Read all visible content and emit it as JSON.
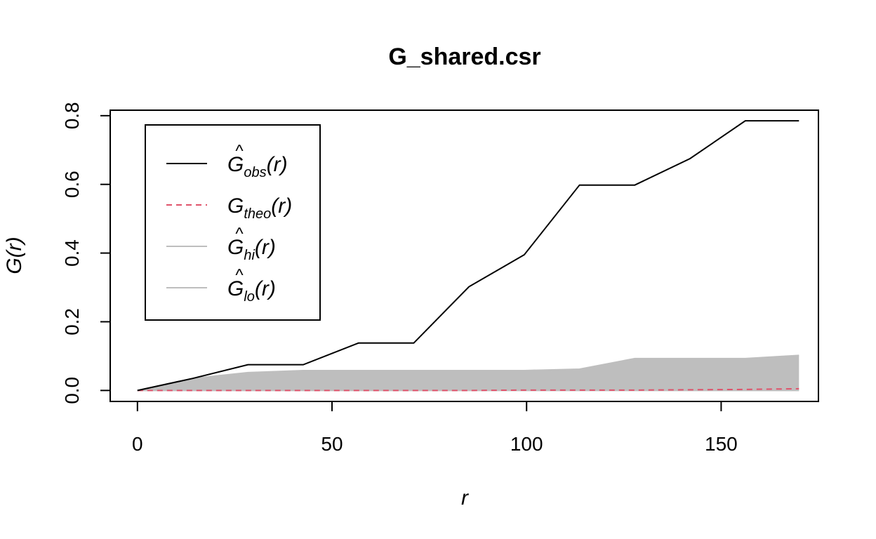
{
  "chart_data": {
    "type": "line",
    "title": "G_shared.csr",
    "xlabel": "r",
    "ylabel": "G(r)",
    "xlim": [
      -7,
      175
    ],
    "ylim": [
      -0.032,
      0.816
    ],
    "xticks": [
      0,
      50,
      100,
      150
    ],
    "yticks": [
      0.0,
      0.2,
      0.4,
      0.6,
      0.8
    ],
    "ytick_labels": [
      "0.0",
      "0.2",
      "0.4",
      "0.6",
      "0.8"
    ],
    "xtick_labels": [
      "0",
      "50",
      "100",
      "150"
    ],
    "legend_position": "top-left",
    "series": [
      {
        "name": "obs",
        "style": "solid",
        "color": "#000000",
        "x": [
          0,
          14.2,
          28.4,
          42.6,
          56.8,
          71,
          85.2,
          99.4,
          113.6,
          127.8,
          142,
          156.2,
          170
        ],
        "y": [
          0,
          0.035,
          0.075,
          0.075,
          0.138,
          0.138,
          0.302,
          0.395,
          0.598,
          0.598,
          0.675,
          0.785,
          0.785
        ]
      },
      {
        "name": "theo",
        "style": "dashed",
        "color": "#DF536B",
        "x": [
          0,
          14.2,
          28.4,
          42.6,
          56.8,
          71,
          85.2,
          99.4,
          113.6,
          127.8,
          142,
          156.2,
          170
        ],
        "y": [
          0,
          0,
          0,
          0,
          0,
          0,
          0,
          0.001,
          0.001,
          0.001,
          0.002,
          0.003,
          0.005
        ]
      },
      {
        "name": "hi",
        "style": "solid",
        "color": "#BEBEBE",
        "x": [
          0,
          14.2,
          28.4,
          42.6,
          56.8,
          71,
          85.2,
          99.4,
          113.6,
          127.8,
          142,
          156.2,
          170
        ],
        "y": [
          0,
          0.035,
          0.052,
          0.058,
          0.058,
          0.058,
          0.058,
          0.058,
          0.062,
          0.093,
          0.093,
          0.093,
          0.102
        ]
      },
      {
        "name": "lo",
        "style": "solid",
        "color": "#BEBEBE",
        "x": [
          0,
          14.2,
          28.4,
          42.6,
          56.8,
          71,
          85.2,
          99.4,
          113.6,
          127.8,
          142,
          156.2,
          170
        ],
        "y": [
          0,
          0,
          0,
          0,
          0,
          0,
          0,
          0,
          0,
          0,
          0,
          0,
          0
        ]
      }
    ],
    "legend": [
      {
        "base": "G",
        "hat": true,
        "sub": "obs",
        "arg": "(r)",
        "style": "solid",
        "color": "#000000"
      },
      {
        "base": "G",
        "hat": false,
        "sub": "theo",
        "arg": "(r)",
        "style": "dashed",
        "color": "#DF536B"
      },
      {
        "base": "G",
        "hat": true,
        "sub": "hi",
        "arg": "(r)",
        "style": "solid",
        "color": "#BEBEBE"
      },
      {
        "base": "G",
        "hat": true,
        "sub": "lo",
        "arg": "(r)",
        "style": "solid",
        "color": "#BEBEBE"
      }
    ],
    "envelope_fill_color": "#BEBEBE"
  }
}
